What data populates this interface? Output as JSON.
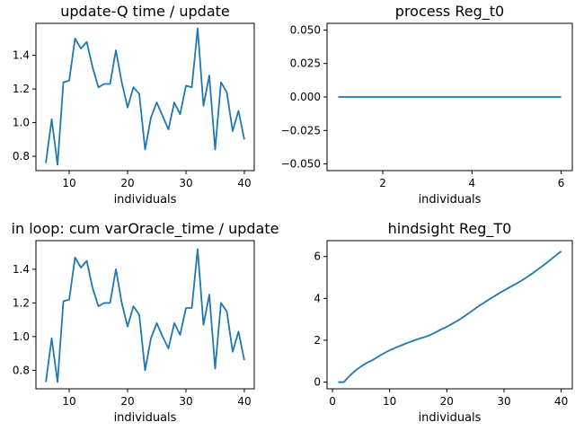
{
  "chart_data": [
    {
      "type": "line",
      "title": "update-Q time / update",
      "xlabel": "individuals",
      "ylabel": "",
      "xlim": [
        4.3,
        41.7
      ],
      "ylim": [
        0.715,
        1.59
      ],
      "xticks": [
        10,
        20,
        30,
        40
      ],
      "yticks": [
        0.8,
        1.0,
        1.2,
        1.4
      ],
      "ytick_labels": [
        "0.8",
        "1.0",
        "1.2",
        "1.4"
      ],
      "series": [
        {
          "x": [
            6,
            7,
            8,
            9,
            10,
            11,
            12,
            13,
            14,
            15,
            16,
            17,
            18,
            19,
            20,
            21,
            22,
            23,
            24,
            25,
            26,
            27,
            28,
            29,
            30,
            31,
            32,
            33,
            34,
            35,
            36,
            37,
            38,
            39,
            40
          ],
          "values": [
            0.76,
            1.02,
            0.75,
            1.24,
            1.25,
            1.5,
            1.44,
            1.48,
            1.33,
            1.21,
            1.23,
            1.23,
            1.43,
            1.24,
            1.09,
            1.21,
            1.17,
            0.84,
            1.03,
            1.12,
            1.04,
            0.96,
            1.12,
            1.05,
            1.22,
            1.21,
            1.56,
            1.1,
            1.28,
            0.84,
            1.24,
            1.18,
            0.95,
            1.07,
            0.9
          ]
        }
      ]
    },
    {
      "type": "line",
      "title": "process Reg_t0",
      "xlabel": "individuals",
      "ylabel": "",
      "xlim": [
        0.75,
        6.25
      ],
      "ylim": [
        -0.055,
        0.055
      ],
      "xticks": [
        2,
        4,
        6
      ],
      "yticks": [
        0.05,
        0.025,
        0.0,
        -0.025,
        -0.05
      ],
      "ytick_labels": [
        "0.050",
        "0.025",
        "0.000",
        "−0.025",
        "−0.050"
      ],
      "series": [
        {
          "x": [
            1,
            2,
            3,
            4,
            5,
            6
          ],
          "values": [
            0,
            0,
            0,
            0,
            0,
            0
          ]
        }
      ]
    },
    {
      "type": "line",
      "title": "in loop: cum varOracle_time / update",
      "xlabel": "individuals",
      "ylabel": "",
      "xlim": [
        4.3,
        41.7
      ],
      "ylim": [
        0.69,
        1.57
      ],
      "xticks": [
        10,
        20,
        30,
        40
      ],
      "yticks": [
        0.8,
        1.0,
        1.2,
        1.4
      ],
      "ytick_labels": [
        "0.8",
        "1.0",
        "1.2",
        "1.4"
      ],
      "series": [
        {
          "x": [
            6,
            7,
            8,
            9,
            10,
            11,
            12,
            13,
            14,
            15,
            16,
            17,
            18,
            19,
            20,
            21,
            22,
            23,
            24,
            25,
            26,
            27,
            28,
            29,
            30,
            31,
            32,
            33,
            34,
            35,
            36,
            37,
            38,
            39,
            40
          ],
          "values": [
            0.73,
            0.99,
            0.73,
            1.21,
            1.22,
            1.47,
            1.41,
            1.45,
            1.29,
            1.18,
            1.2,
            1.2,
            1.4,
            1.2,
            1.06,
            1.18,
            1.13,
            0.8,
            0.99,
            1.08,
            1.0,
            0.93,
            1.08,
            1.01,
            1.17,
            1.17,
            1.52,
            1.07,
            1.25,
            0.81,
            1.2,
            1.15,
            0.91,
            1.03,
            0.86
          ]
        }
      ]
    },
    {
      "type": "line",
      "title": "hindsight Reg_T0",
      "xlabel": "individuals",
      "ylabel": "",
      "xlim": [
        -0.95,
        41.95
      ],
      "ylim": [
        -0.32,
        6.76
      ],
      "xticks": [
        0,
        10,
        20,
        30,
        40
      ],
      "yticks": [
        0,
        2,
        4,
        6
      ],
      "ytick_labels": [
        "0",
        "2",
        "4",
        "6"
      ],
      "series": [
        {
          "x": [
            1,
            2,
            3,
            4,
            5,
            6,
            7,
            8,
            9,
            10,
            11,
            12,
            13,
            14,
            15,
            16,
            17,
            18,
            19,
            20,
            21,
            22,
            23,
            24,
            25,
            26,
            27,
            28,
            29,
            30,
            31,
            32,
            33,
            34,
            35,
            36,
            37,
            38,
            39,
            40
          ],
          "values": [
            0,
            0,
            0.3,
            0.55,
            0.75,
            0.92,
            1.05,
            1.22,
            1.38,
            1.52,
            1.64,
            1.75,
            1.86,
            1.96,
            2.06,
            2.14,
            2.24,
            2.37,
            2.52,
            2.64,
            2.8,
            2.95,
            3.13,
            3.32,
            3.52,
            3.7,
            3.88,
            4.05,
            4.22,
            4.38,
            4.53,
            4.68,
            4.84,
            5.01,
            5.2,
            5.4,
            5.6,
            5.82,
            6.04,
            6.25
          ]
        }
      ]
    }
  ]
}
